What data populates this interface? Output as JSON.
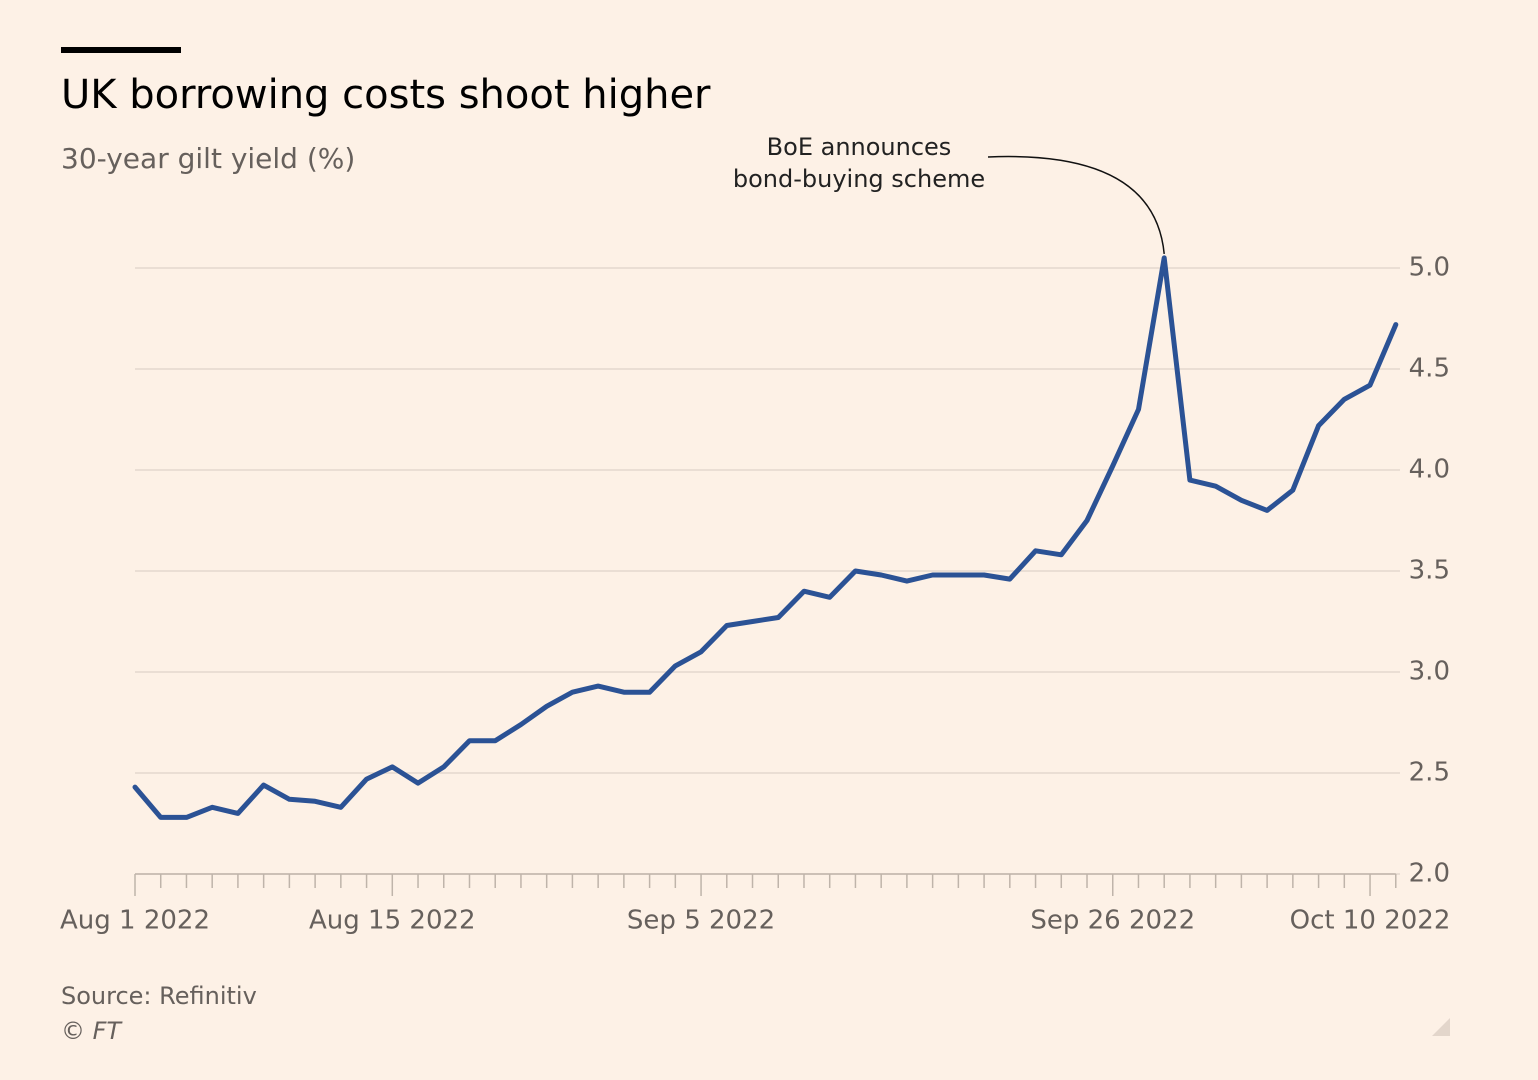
{
  "chart_data": {
    "type": "line",
    "title": "UK borrowing costs shoot higher",
    "subtitle": "30-year gilt yield (%)",
    "annotation": [
      "BoE announces",
      "bond-buying scheme"
    ],
    "source": "Source: Refinitiv",
    "credit": "© FT",
    "categories": [
      "Aug 1 2022",
      null,
      null,
      null,
      null,
      null,
      null,
      null,
      null,
      null,
      "Aug 15 2022",
      null,
      null,
      null,
      null,
      null,
      null,
      null,
      null,
      null,
      null,
      null,
      "Sep 5 2022",
      null,
      null,
      null,
      null,
      null,
      null,
      null,
      null,
      null,
      null,
      null,
      null,
      null,
      null,
      null,
      "Sep 26 2022",
      null,
      null,
      null,
      null,
      null,
      null,
      null,
      null,
      null,
      "Oct 10 2022",
      null
    ],
    "values": [
      2.43,
      2.28,
      2.28,
      2.33,
      2.3,
      2.44,
      2.37,
      2.36,
      2.33,
      2.47,
      2.53,
      2.45,
      2.53,
      2.66,
      2.66,
      2.74,
      2.83,
      2.9,
      2.93,
      2.9,
      2.9,
      3.03,
      3.1,
      3.23,
      3.25,
      3.27,
      3.4,
      3.37,
      3.5,
      3.48,
      3.45,
      3.48,
      3.48,
      3.48,
      3.46,
      3.6,
      3.58,
      3.75,
      4.02,
      4.3,
      5.05,
      3.95,
      3.92,
      3.85,
      3.8,
      3.9,
      4.22,
      4.35,
      4.42,
      4.72
    ],
    "color": "#2b5295",
    "annotated_point": 40,
    "ylim": [
      2.0,
      5.0
    ],
    "yticks": [
      {
        "value": 2,
        "label": "2.0"
      },
      {
        "value": 2.5,
        "label": "2.5"
      },
      {
        "value": 3,
        "label": "3.0"
      },
      {
        "value": 3.5,
        "label": "3.5"
      },
      {
        "value": 4,
        "label": "4.0"
      },
      {
        "value": 4.5,
        "label": "4.5"
      },
      {
        "value": 5,
        "label": "5.0"
      }
    ],
    "grid": true
  }
}
